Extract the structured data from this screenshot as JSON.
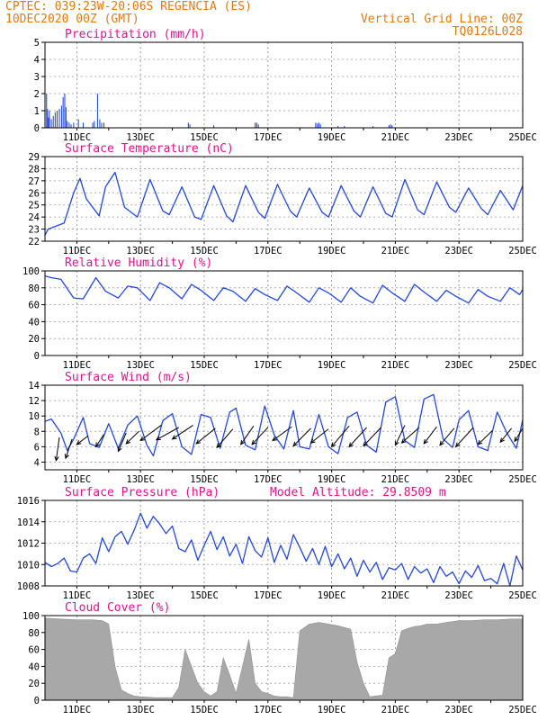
{
  "header": {
    "line1": "CPTEC:   039:23W-20:06S  REGENCIA (ES)",
    "line2": "10DEC2020 00Z (GMT)",
    "grid_note": "Vertical Grid Line: 00Z",
    "code": "TQ0126L028"
  },
  "colors": {
    "header": "#e07a10",
    "title": "#e0148c",
    "series": "#2448d8",
    "cloud": "#a8a8a8",
    "wind_arrow": "#000000"
  },
  "chart_data": [
    {
      "id": "precip",
      "type": "bar",
      "title": "Precipitation (mm/h)",
      "ylim": [
        0,
        5
      ],
      "yticks": [
        0,
        1,
        2,
        3,
        4,
        5
      ],
      "x_range_days": [
        10,
        25
      ],
      "xticks": [
        "11DEC",
        "13DEC",
        "15DEC",
        "17DEC",
        "19DEC",
        "21DEC",
        "23DEC",
        "25DEC"
      ],
      "xtick_days": [
        11,
        13,
        15,
        17,
        19,
        21,
        23,
        25
      ],
      "grid": true,
      "bars": [
        [
          10.05,
          2.0
        ],
        [
          10.08,
          1.1
        ],
        [
          10.11,
          0.6
        ],
        [
          10.14,
          1.0
        ],
        [
          10.2,
          0.5
        ],
        [
          10.26,
          0.7
        ],
        [
          10.32,
          0.9
        ],
        [
          10.38,
          1.0
        ],
        [
          10.45,
          1.1
        ],
        [
          10.52,
          1.3
        ],
        [
          10.57,
          1.8
        ],
        [
          10.62,
          2.0
        ],
        [
          10.66,
          1.2
        ],
        [
          10.7,
          0.4
        ],
        [
          10.76,
          0.3
        ],
        [
          10.82,
          0.2
        ],
        [
          10.9,
          0.3
        ],
        [
          11.05,
          0.5
        ],
        [
          11.2,
          0.3
        ],
        [
          11.5,
          0.3
        ],
        [
          11.55,
          0.4
        ],
        [
          11.65,
          2.0
        ],
        [
          11.72,
          0.5
        ],
        [
          11.78,
          0.3
        ],
        [
          11.85,
          0.3
        ],
        [
          14.5,
          0.3
        ],
        [
          14.55,
          0.2
        ],
        [
          15.3,
          0.15
        ],
        [
          16.6,
          0.3
        ],
        [
          16.65,
          0.3
        ],
        [
          16.7,
          0.2
        ],
        [
          18.5,
          0.3
        ],
        [
          18.55,
          0.25
        ],
        [
          18.6,
          0.3
        ],
        [
          18.65,
          0.2
        ],
        [
          19.2,
          0.1
        ],
        [
          19.4,
          0.1
        ],
        [
          20.3,
          0.1
        ],
        [
          20.8,
          0.15
        ],
        [
          20.85,
          0.2
        ],
        [
          20.9,
          0.15
        ]
      ]
    },
    {
      "id": "temp",
      "type": "line",
      "title": "Surface Temperature (nC)",
      "ylim": [
        22,
        29
      ],
      "yticks": [
        22,
        23,
        24,
        25,
        26,
        27,
        28,
        29
      ],
      "x_range_days": [
        10,
        25
      ],
      "xticks": [
        "11DEC",
        "13DEC",
        "15DEC",
        "17DEC",
        "19DEC",
        "21DEC",
        "23DEC",
        "25DEC"
      ],
      "xtick_days": [
        11,
        13,
        15,
        17,
        19,
        21,
        23,
        25
      ],
      "grid": true,
      "x": [
        10.0,
        10.1,
        10.3,
        10.6,
        10.9,
        11.1,
        11.3,
        11.7,
        11.9,
        12.2,
        12.5,
        12.9,
        13.3,
        13.7,
        13.9,
        14.3,
        14.7,
        14.9,
        15.3,
        15.7,
        15.9,
        16.3,
        16.7,
        16.9,
        17.3,
        17.7,
        17.9,
        18.3,
        18.7,
        18.9,
        19.3,
        19.7,
        19.9,
        20.3,
        20.7,
        20.9,
        21.3,
        21.7,
        21.9,
        22.3,
        22.7,
        22.9,
        23.3,
        23.7,
        23.9,
        24.3,
        24.7,
        25.0
      ],
      "y": [
        22.5,
        23.0,
        23.2,
        23.5,
        26.0,
        27.2,
        25.5,
        24.1,
        26.5,
        27.7,
        24.8,
        24.0,
        27.1,
        24.5,
        24.2,
        26.5,
        24.0,
        23.8,
        26.6,
        24.1,
        23.6,
        26.6,
        24.4,
        23.9,
        26.7,
        24.5,
        24.0,
        26.4,
        24.4,
        24.0,
        26.6,
        24.5,
        24.0,
        26.5,
        24.3,
        24.0,
        27.1,
        24.6,
        24.2,
        26.9,
        24.8,
        24.4,
        26.4,
        24.7,
        24.2,
        26.2,
        24.6,
        26.6
      ]
    },
    {
      "id": "humid",
      "type": "line",
      "title": "Relative Humidity (%)",
      "ylim": [
        0,
        100
      ],
      "yticks": [
        0,
        20,
        40,
        60,
        80,
        100
      ],
      "x_range_days": [
        10,
        25
      ],
      "xticks": [
        "11DEC",
        "13DEC",
        "15DEC",
        "17DEC",
        "19DEC",
        "21DEC",
        "23DEC",
        "25DEC"
      ],
      "xtick_days": [
        11,
        13,
        15,
        17,
        19,
        21,
        23,
        25
      ],
      "grid": true,
      "x": [
        10.0,
        10.2,
        10.5,
        10.9,
        11.2,
        11.6,
        11.9,
        12.3,
        12.6,
        12.9,
        13.3,
        13.6,
        13.9,
        14.3,
        14.6,
        14.9,
        15.3,
        15.6,
        15.9,
        16.3,
        16.6,
        16.9,
        17.3,
        17.6,
        17.9,
        18.3,
        18.6,
        18.9,
        19.3,
        19.6,
        19.9,
        20.3,
        20.6,
        20.9,
        21.3,
        21.6,
        21.9,
        22.3,
        22.6,
        22.9,
        23.3,
        23.6,
        23.9,
        24.3,
        24.6,
        24.9,
        25.0
      ],
      "y": [
        94,
        92,
        90,
        68,
        67,
        92,
        76,
        68,
        82,
        80,
        65,
        86,
        80,
        67,
        84,
        77,
        65,
        80,
        76,
        64,
        79,
        72,
        65,
        82,
        74,
        63,
        80,
        74,
        63,
        80,
        70,
        62,
        83,
        74,
        64,
        84,
        75,
        64,
        77,
        70,
        62,
        78,
        70,
        64,
        80,
        72,
        78
      ]
    },
    {
      "id": "wind",
      "type": "line",
      "title": "Surface Wind (m/s)",
      "ylim": [
        3,
        14
      ],
      "yticks": [
        4,
        6,
        8,
        10,
        12,
        14
      ],
      "x_range_days": [
        10,
        25
      ],
      "xticks": [
        "11DEC",
        "13DEC",
        "15DEC",
        "17DEC",
        "19DEC",
        "21DEC",
        "23DEC",
        "25DEC"
      ],
      "xtick_days": [
        11,
        13,
        15,
        17,
        19,
        21,
        23,
        25
      ],
      "grid": true,
      "x": [
        10.0,
        10.2,
        10.5,
        10.7,
        10.9,
        11.2,
        11.4,
        11.7,
        12.0,
        12.3,
        12.6,
        12.9,
        13.2,
        13.4,
        13.7,
        14.0,
        14.3,
        14.6,
        14.9,
        15.2,
        15.5,
        15.8,
        16.0,
        16.3,
        16.6,
        16.9,
        17.2,
        17.5,
        17.8,
        18.0,
        18.3,
        18.6,
        18.9,
        19.2,
        19.5,
        19.8,
        20.1,
        20.4,
        20.7,
        21.0,
        21.3,
        21.6,
        21.9,
        22.2,
        22.5,
        22.8,
        23.0,
        23.3,
        23.6,
        23.9,
        24.2,
        24.5,
        24.8,
        25.0
      ],
      "y": [
        9.3,
        9.6,
        7.8,
        5.5,
        7.0,
        9.8,
        6.4,
        5.9,
        9.0,
        5.8,
        8.8,
        10.0,
        6.2,
        4.8,
        9.4,
        10.3,
        6.0,
        5.0,
        10.2,
        9.8,
        5.8,
        10.5,
        11.0,
        6.2,
        5.6,
        11.3,
        7.5,
        5.7,
        10.7,
        6.0,
        5.7,
        10.2,
        6.0,
        5.1,
        9.8,
        10.5,
        6.2,
        5.3,
        11.8,
        12.5,
        6.8,
        5.9,
        12.2,
        12.8,
        7.0,
        5.9,
        9.5,
        10.7,
        6.0,
        5.5,
        10.5,
        7.8,
        5.8,
        9.5
      ],
      "arrows": [
        [
          10.45,
          7.2,
          10.35,
          4.2
        ],
        [
          10.85,
          7.0,
          10.65,
          4.5
        ],
        [
          11.35,
          7.4,
          11.0,
          6.3
        ],
        [
          11.85,
          7.6,
          11.6,
          6.0
        ],
        [
          12.55,
          7.8,
          12.3,
          5.4
        ],
        [
          12.95,
          8.0,
          12.55,
          6.4
        ],
        [
          13.65,
          8.8,
          13.0,
          6.8
        ],
        [
          14.2,
          8.5,
          13.5,
          6.9
        ],
        [
          14.65,
          8.8,
          14.0,
          7.0
        ],
        [
          15.35,
          8.4,
          14.75,
          6.4
        ],
        [
          15.9,
          8.3,
          15.4,
          5.9
        ],
        [
          16.55,
          8.7,
          16.15,
          6.3
        ],
        [
          17.0,
          8.5,
          16.5,
          6.3
        ],
        [
          17.75,
          8.6,
          17.15,
          6.8
        ],
        [
          18.35,
          8.4,
          17.8,
          6.1
        ],
        [
          18.9,
          8.3,
          18.35,
          6.5
        ],
        [
          19.55,
          8.7,
          19.0,
          6.0
        ],
        [
          20.1,
          8.5,
          19.55,
          6.0
        ],
        [
          20.55,
          8.5,
          20.0,
          6.1
        ],
        [
          21.3,
          8.8,
          21.0,
          6.2
        ],
        [
          21.75,
          8.5,
          21.2,
          6.5
        ],
        [
          22.3,
          8.6,
          21.9,
          6.4
        ],
        [
          22.85,
          8.4,
          22.4,
          6.2
        ],
        [
          23.45,
          8.5,
          22.9,
          6.0
        ],
        [
          24.05,
          8.1,
          23.6,
          6.3
        ],
        [
          24.65,
          8.4,
          24.3,
          6.6
        ],
        [
          25.0,
          8.4,
          24.75,
          6.7
        ]
      ]
    },
    {
      "id": "press",
      "type": "line",
      "title": "Surface Pressure (hPa)",
      "subtitle": "Model Altitude: 29.8509 m",
      "ylim": [
        1008,
        1016
      ],
      "yticks": [
        1008,
        1010,
        1012,
        1014,
        1016
      ],
      "x_range_days": [
        10,
        25
      ],
      "xticks": [
        "11DEC",
        "13DEC",
        "15DEC",
        "17DEC",
        "19DEC",
        "21DEC",
        "23DEC",
        "25DEC"
      ],
      "xtick_days": [
        11,
        13,
        15,
        17,
        19,
        21,
        23,
        25
      ],
      "grid": true,
      "x": [
        10.0,
        10.2,
        10.4,
        10.6,
        10.8,
        11.0,
        11.2,
        11.4,
        11.6,
        11.8,
        12.0,
        12.2,
        12.4,
        12.6,
        12.8,
        13.0,
        13.2,
        13.4,
        13.6,
        13.8,
        14.0,
        14.2,
        14.4,
        14.6,
        14.8,
        15.0,
        15.2,
        15.4,
        15.6,
        15.8,
        16.0,
        16.2,
        16.4,
        16.6,
        16.8,
        17.0,
        17.2,
        17.4,
        17.6,
        17.8,
        18.0,
        18.2,
        18.4,
        18.6,
        18.8,
        19.0,
        19.2,
        19.4,
        19.6,
        19.8,
        20.0,
        20.2,
        20.4,
        20.6,
        20.8,
        21.0,
        21.2,
        21.4,
        21.6,
        21.8,
        22.0,
        22.2,
        22.4,
        22.6,
        22.8,
        23.0,
        23.2,
        23.4,
        23.6,
        23.8,
        24.0,
        24.2,
        24.4,
        24.6,
        24.8,
        25.0
      ],
      "y": [
        1010.2,
        1009.8,
        1010.1,
        1010.6,
        1009.4,
        1009.3,
        1010.6,
        1011.0,
        1010.1,
        1012.5,
        1011.2,
        1012.6,
        1013.1,
        1011.9,
        1013.2,
        1014.8,
        1013.4,
        1014.5,
        1013.8,
        1012.9,
        1013.6,
        1011.5,
        1011.2,
        1012.3,
        1010.4,
        1011.8,
        1013.1,
        1011.4,
        1012.6,
        1010.8,
        1011.9,
        1010.1,
        1012.6,
        1011.3,
        1010.7,
        1012.5,
        1010.2,
        1011.8,
        1010.5,
        1012.8,
        1011.6,
        1010.3,
        1011.5,
        1010.0,
        1011.7,
        1009.8,
        1011.0,
        1009.6,
        1010.6,
        1008.9,
        1010.4,
        1009.3,
        1010.2,
        1008.6,
        1009.7,
        1009.5,
        1010.1,
        1008.6,
        1009.8,
        1009.2,
        1009.6,
        1008.3,
        1009.8,
        1008.9,
        1009.3,
        1008.2,
        1009.4,
        1008.8,
        1009.9,
        1008.5,
        1008.7,
        1008.2,
        1010.1,
        1008.0,
        1010.8,
        1009.5
      ]
    },
    {
      "id": "cloud",
      "type": "area",
      "title": "Cloud Cover (%)",
      "ylim": [
        0,
        100
      ],
      "yticks": [
        0,
        20,
        40,
        60,
        80,
        100
      ],
      "x_range_days": [
        10,
        25
      ],
      "xticks": [
        "11DEC",
        "13DEC",
        "15DEC",
        "17DEC",
        "19DEC",
        "21DEC",
        "23DEC",
        "25DEC"
      ],
      "xtick_days": [
        11,
        13,
        15,
        17,
        19,
        21,
        23,
        25
      ],
      "grid": true,
      "x": [
        10.0,
        10.5,
        11.0,
        11.5,
        11.8,
        12.0,
        12.2,
        12.4,
        12.6,
        12.8,
        13.0,
        13.5,
        14.0,
        14.2,
        14.4,
        14.6,
        14.8,
        15.0,
        15.2,
        15.4,
        15.6,
        15.8,
        16.0,
        16.2,
        16.4,
        16.6,
        16.8,
        17.0,
        17.2,
        17.4,
        17.6,
        17.8,
        18.0,
        18.3,
        18.6,
        18.9,
        19.2,
        19.4,
        19.6,
        19.8,
        20.0,
        20.2,
        20.4,
        20.6,
        20.8,
        21.0,
        21.2,
        21.4,
        21.6,
        21.8,
        22.0,
        22.3,
        22.6,
        23.0,
        23.4,
        23.8,
        24.2,
        24.6,
        25.0
      ],
      "y": [
        97,
        96,
        95,
        95,
        94,
        90,
        40,
        12,
        8,
        5,
        4,
        3,
        3,
        15,
        60,
        40,
        20,
        10,
        5,
        10,
        50,
        30,
        8,
        40,
        72,
        20,
        10,
        8,
        5,
        4,
        4,
        3,
        82,
        90,
        92,
        90,
        88,
        86,
        84,
        45,
        20,
        4,
        5,
        6,
        50,
        55,
        82,
        85,
        87,
        88,
        90,
        90,
        92,
        94,
        94,
        95,
        95,
        96,
        96
      ]
    }
  ]
}
